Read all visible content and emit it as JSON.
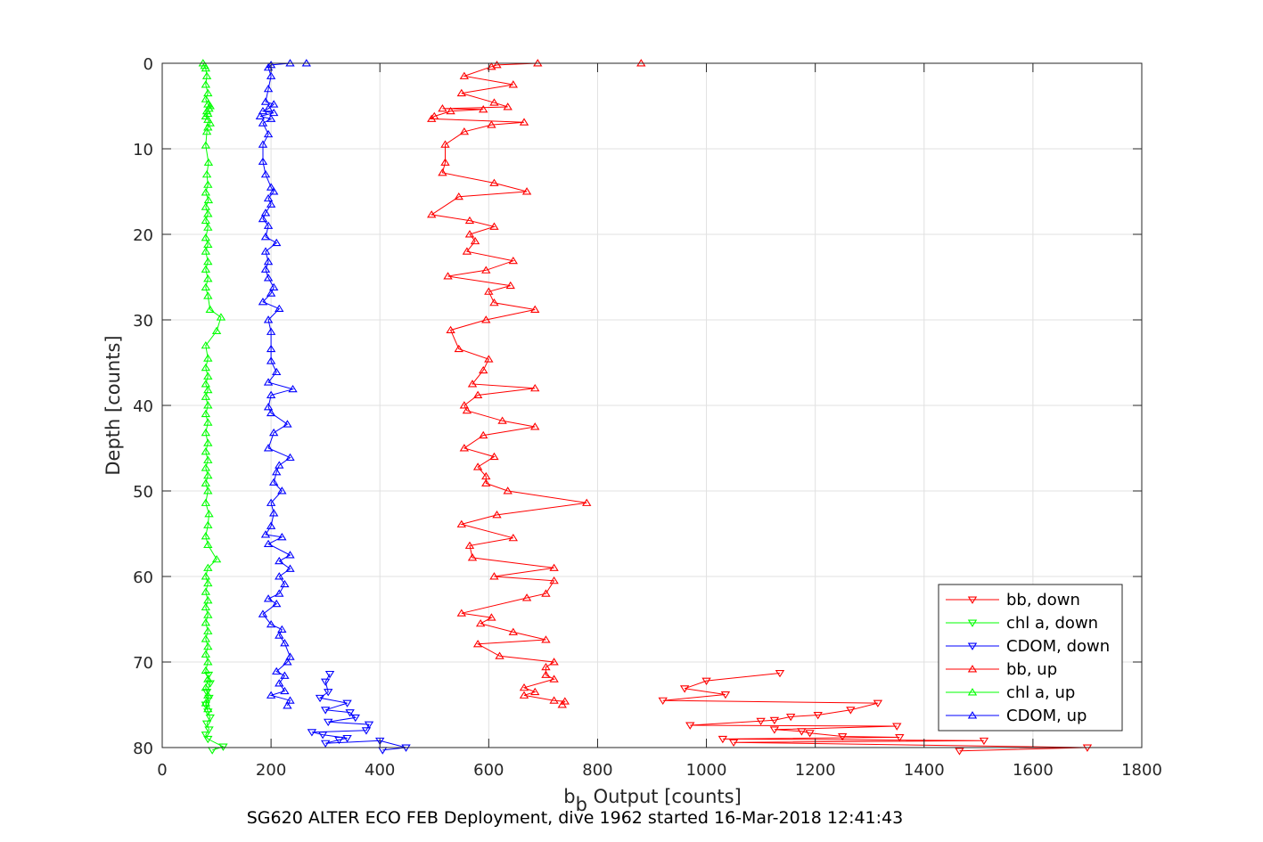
{
  "chart_data": {
    "type": "line",
    "xlabel_main": "b",
    "xlabel_sub": "b",
    "xlabel_rest": " Output [counts]",
    "ylabel": "Depth [counts]",
    "caption": "SG620 ALTER ECO FEB Deployment, dive 1962 started 16-Mar-2018 12:41:43",
    "xlim": [
      0,
      1800
    ],
    "ylim": [
      0,
      80
    ],
    "y_reversed": true,
    "grid": true,
    "legend_position": "lower-right",
    "x_ticks": [
      "0",
      "200",
      "400",
      "600",
      "800",
      "1000",
      "1200",
      "1400",
      "1600",
      "1800"
    ],
    "y_ticks": [
      "0",
      "10",
      "20",
      "30",
      "40",
      "50",
      "60",
      "70",
      "80"
    ],
    "series": [
      {
        "name": "bb, down",
        "color": "#ff0000",
        "marker": "triangle-down",
        "points": [
          [
            1135,
            71.3
          ],
          [
            1000,
            72.2
          ],
          [
            960,
            73.1
          ],
          [
            1035,
            73.8
          ],
          [
            920,
            74.5
          ],
          [
            1315,
            74.8
          ],
          [
            1265,
            75.6
          ],
          [
            1205,
            76.2
          ],
          [
            1155,
            76.4
          ],
          [
            1125,
            76.8
          ],
          [
            1100,
            76.9
          ],
          [
            970,
            77.4
          ],
          [
            1350,
            77.5
          ],
          [
            1125,
            77.9
          ],
          [
            1175,
            78.1
          ],
          [
            1190,
            78.3
          ],
          [
            1250,
            78.7
          ],
          [
            1355,
            78.8
          ],
          [
            1030,
            79.0
          ],
          [
            1510,
            79.2
          ],
          [
            1050,
            79.4
          ],
          [
            1700,
            80.0
          ],
          [
            1465,
            80.4
          ]
        ]
      },
      {
        "name": "chl a, down",
        "color": "#00ff00",
        "marker": "triangle-down",
        "points": [
          [
            85,
            71.5
          ],
          [
            88,
            72.5
          ],
          [
            82,
            73.5
          ],
          [
            86,
            74.2
          ],
          [
            80,
            75.0
          ],
          [
            84,
            75.8
          ],
          [
            88,
            76.5
          ],
          [
            82,
            77.2
          ],
          [
            86,
            77.9
          ],
          [
            80,
            78.5
          ],
          [
            84,
            79.0
          ],
          [
            112,
            79.9
          ],
          [
            92,
            80.3
          ]
        ]
      },
      {
        "name": "CDOM, down",
        "color": "#0000ff",
        "marker": "triangle-down",
        "points": [
          [
            308,
            71.4
          ],
          [
            300,
            72.3
          ],
          [
            305,
            73.5
          ],
          [
            290,
            74.2
          ],
          [
            340,
            74.8
          ],
          [
            300,
            75.6
          ],
          [
            345,
            75.9
          ],
          [
            355,
            76.5
          ],
          [
            305,
            77.0
          ],
          [
            380,
            77.3
          ],
          [
            375,
            78.0
          ],
          [
            275,
            78.2
          ],
          [
            295,
            78.5
          ],
          [
            340,
            78.9
          ],
          [
            325,
            79.1
          ],
          [
            300,
            79.5
          ],
          [
            400,
            79.2
          ],
          [
            448,
            80.0
          ],
          [
            405,
            80.3
          ]
        ]
      },
      {
        "name": "bb, up",
        "color": "#ff0000",
        "marker": "triangle-up",
        "points": [
          [
            880,
            0.0
          ],
          [
            690,
            0.0
          ],
          [
            615,
            0.2
          ],
          [
            605,
            0.4
          ],
          [
            555,
            1.5
          ],
          [
            645,
            2.5
          ],
          [
            550,
            3.5
          ],
          [
            610,
            4.6
          ],
          [
            635,
            5.1
          ],
          [
            515,
            5.3
          ],
          [
            590,
            5.4
          ],
          [
            530,
            5.6
          ],
          [
            500,
            6.2
          ],
          [
            495,
            6.5
          ],
          [
            665,
            6.9
          ],
          [
            605,
            7.2
          ],
          [
            555,
            8.0
          ],
          [
            520,
            9.5
          ],
          [
            520,
            11.6
          ],
          [
            515,
            12.8
          ],
          [
            610,
            14.0
          ],
          [
            670,
            15.0
          ],
          [
            545,
            15.6
          ],
          [
            495,
            17.7
          ],
          [
            565,
            18.4
          ],
          [
            610,
            19.1
          ],
          [
            565,
            20.0
          ],
          [
            575,
            20.8
          ],
          [
            560,
            22.0
          ],
          [
            645,
            23.1
          ],
          [
            595,
            24.2
          ],
          [
            525,
            24.9
          ],
          [
            640,
            26.0
          ],
          [
            600,
            26.7
          ],
          [
            610,
            28.0
          ],
          [
            685,
            28.8
          ],
          [
            595,
            30.0
          ],
          [
            530,
            31.2
          ],
          [
            545,
            33.4
          ],
          [
            600,
            34.6
          ],
          [
            590,
            35.9
          ],
          [
            570,
            37.5
          ],
          [
            685,
            38.0
          ],
          [
            580,
            38.8
          ],
          [
            555,
            40.0
          ],
          [
            560,
            40.6
          ],
          [
            625,
            41.8
          ],
          [
            685,
            42.5
          ],
          [
            590,
            43.5
          ],
          [
            555,
            45.0
          ],
          [
            610,
            46.0
          ],
          [
            580,
            47.2
          ],
          [
            595,
            48.3
          ],
          [
            595,
            49.1
          ],
          [
            635,
            50.0
          ],
          [
            780,
            51.4
          ],
          [
            615,
            52.8
          ],
          [
            550,
            53.9
          ],
          [
            645,
            55.5
          ],
          [
            565,
            56.4
          ],
          [
            570,
            57.8
          ],
          [
            720,
            59.0
          ],
          [
            610,
            60.0
          ],
          [
            720,
            60.5
          ],
          [
            705,
            62.0
          ],
          [
            670,
            62.5
          ],
          [
            550,
            64.3
          ],
          [
            605,
            64.8
          ],
          [
            585,
            65.5
          ],
          [
            645,
            66.5
          ],
          [
            705,
            67.4
          ],
          [
            580,
            67.9
          ],
          [
            620,
            69.3
          ],
          [
            720,
            70.0
          ],
          [
            705,
            70.6
          ],
          [
            705,
            71.5
          ],
          [
            720,
            72.0
          ],
          [
            665,
            73.0
          ],
          [
            685,
            73.5
          ],
          [
            665,
            73.9
          ],
          [
            720,
            74.5
          ],
          [
            740,
            74.6
          ],
          [
            735,
            75.0
          ]
        ]
      },
      {
        "name": "chl a, up",
        "color": "#00ff00",
        "marker": "triangle-up",
        "points": [
          [
            75,
            0.0
          ],
          [
            78,
            0.3
          ],
          [
            80,
            0.6
          ],
          [
            82,
            1.5
          ],
          [
            80,
            2.5
          ],
          [
            84,
            3.5
          ],
          [
            80,
            4.2
          ],
          [
            84,
            4.8
          ],
          [
            88,
            5.0
          ],
          [
            86,
            5.3
          ],
          [
            82,
            5.6
          ],
          [
            84,
            5.9
          ],
          [
            80,
            6.2
          ],
          [
            84,
            6.6
          ],
          [
            88,
            7.0
          ],
          [
            84,
            7.5
          ],
          [
            82,
            8.0
          ],
          [
            80,
            9.6
          ],
          [
            85,
            11.6
          ],
          [
            82,
            13.0
          ],
          [
            84,
            14.2
          ],
          [
            80,
            15.1
          ],
          [
            85,
            16.0
          ],
          [
            80,
            16.8
          ],
          [
            84,
            17.6
          ],
          [
            80,
            18.4
          ],
          [
            84,
            19.2
          ],
          [
            80,
            20.4
          ],
          [
            84,
            21.2
          ],
          [
            80,
            22.0
          ],
          [
            84,
            23.2
          ],
          [
            80,
            24.1
          ],
          [
            84,
            25.2
          ],
          [
            80,
            26.2
          ],
          [
            84,
            27.2
          ],
          [
            88,
            28.8
          ],
          [
            108,
            29.7
          ],
          [
            100,
            31.3
          ],
          [
            80,
            33.0
          ],
          [
            84,
            34.5
          ],
          [
            80,
            35.6
          ],
          [
            84,
            36.6
          ],
          [
            80,
            37.5
          ],
          [
            84,
            38.2
          ],
          [
            80,
            39.0
          ],
          [
            84,
            40.0
          ],
          [
            80,
            41.0
          ],
          [
            84,
            42.0
          ],
          [
            80,
            43.2
          ],
          [
            84,
            44.4
          ],
          [
            80,
            45.4
          ],
          [
            84,
            46.4
          ],
          [
            80,
            47.3
          ],
          [
            84,
            48.2
          ],
          [
            80,
            49.1
          ],
          [
            84,
            50.0
          ],
          [
            80,
            51.4
          ],
          [
            86,
            52.7
          ],
          [
            84,
            54.0
          ],
          [
            80,
            55.3
          ],
          [
            84,
            56.3
          ],
          [
            100,
            58.0
          ],
          [
            84,
            59.0
          ],
          [
            80,
            60.0
          ],
          [
            84,
            60.8
          ],
          [
            80,
            61.8
          ],
          [
            84,
            62.8
          ],
          [
            80,
            63.6
          ],
          [
            84,
            64.5
          ],
          [
            80,
            65.4
          ],
          [
            84,
            66.4
          ],
          [
            80,
            67.3
          ],
          [
            84,
            68.2
          ],
          [
            80,
            69.1
          ],
          [
            84,
            70.0
          ],
          [
            80,
            71.0
          ],
          [
            84,
            72.0
          ],
          [
            80,
            73.0
          ],
          [
            84,
            73.9
          ],
          [
            80,
            74.8
          ],
          [
            84,
            75.5
          ]
        ]
      },
      {
        "name": "CDOM, up",
        "color": "#0000ff",
        "marker": "triangle-up",
        "points": [
          [
            265,
            0.0
          ],
          [
            235,
            0.0
          ],
          [
            200,
            0.2
          ],
          [
            195,
            0.5
          ],
          [
            200,
            1.5
          ],
          [
            195,
            3.0
          ],
          [
            190,
            4.5
          ],
          [
            205,
            4.8
          ],
          [
            195,
            5.3
          ],
          [
            185,
            5.6
          ],
          [
            205,
            5.8
          ],
          [
            180,
            6.2
          ],
          [
            200,
            6.5
          ],
          [
            185,
            7.0
          ],
          [
            195,
            8.3
          ],
          [
            185,
            9.5
          ],
          [
            185,
            11.5
          ],
          [
            190,
            13.0
          ],
          [
            200,
            14.5
          ],
          [
            205,
            15.0
          ],
          [
            195,
            15.8
          ],
          [
            200,
            16.5
          ],
          [
            190,
            17.5
          ],
          [
            185,
            18.2
          ],
          [
            195,
            19.0
          ],
          [
            190,
            20.3
          ],
          [
            210,
            21.0
          ],
          [
            190,
            22.0
          ],
          [
            195,
            23.2
          ],
          [
            190,
            24.1
          ],
          [
            195,
            25.1
          ],
          [
            205,
            26.2
          ],
          [
            200,
            26.9
          ],
          [
            185,
            27.9
          ],
          [
            215,
            28.7
          ],
          [
            195,
            30.0
          ],
          [
            200,
            31.4
          ],
          [
            200,
            33.4
          ],
          [
            200,
            34.8
          ],
          [
            210,
            36.1
          ],
          [
            195,
            37.3
          ],
          [
            240,
            38.1
          ],
          [
            200,
            38.8
          ],
          [
            195,
            40.2
          ],
          [
            200,
            40.9
          ],
          [
            230,
            42.2
          ],
          [
            205,
            43.2
          ],
          [
            195,
            45.0
          ],
          [
            235,
            46.1
          ],
          [
            215,
            47.0
          ],
          [
            210,
            47.8
          ],
          [
            205,
            49.0
          ],
          [
            220,
            50.0
          ],
          [
            200,
            51.4
          ],
          [
            205,
            52.6
          ],
          [
            200,
            54.1
          ],
          [
            190,
            55.1
          ],
          [
            220,
            55.4
          ],
          [
            195,
            56.2
          ],
          [
            235,
            57.5
          ],
          [
            215,
            58.2
          ],
          [
            235,
            59.1
          ],
          [
            215,
            60.0
          ],
          [
            225,
            60.9
          ],
          [
            215,
            62.0
          ],
          [
            195,
            62.6
          ],
          [
            210,
            63.2
          ],
          [
            185,
            64.4
          ],
          [
            200,
            65.6
          ],
          [
            220,
            66.2
          ],
          [
            215,
            66.9
          ],
          [
            225,
            67.8
          ],
          [
            235,
            69.4
          ],
          [
            230,
            70.0
          ],
          [
            210,
            71.1
          ],
          [
            225,
            71.6
          ],
          [
            215,
            72.5
          ],
          [
            225,
            73.4
          ],
          [
            200,
            73.9
          ],
          [
            235,
            74.5
          ],
          [
            230,
            75.1
          ]
        ]
      }
    ]
  }
}
